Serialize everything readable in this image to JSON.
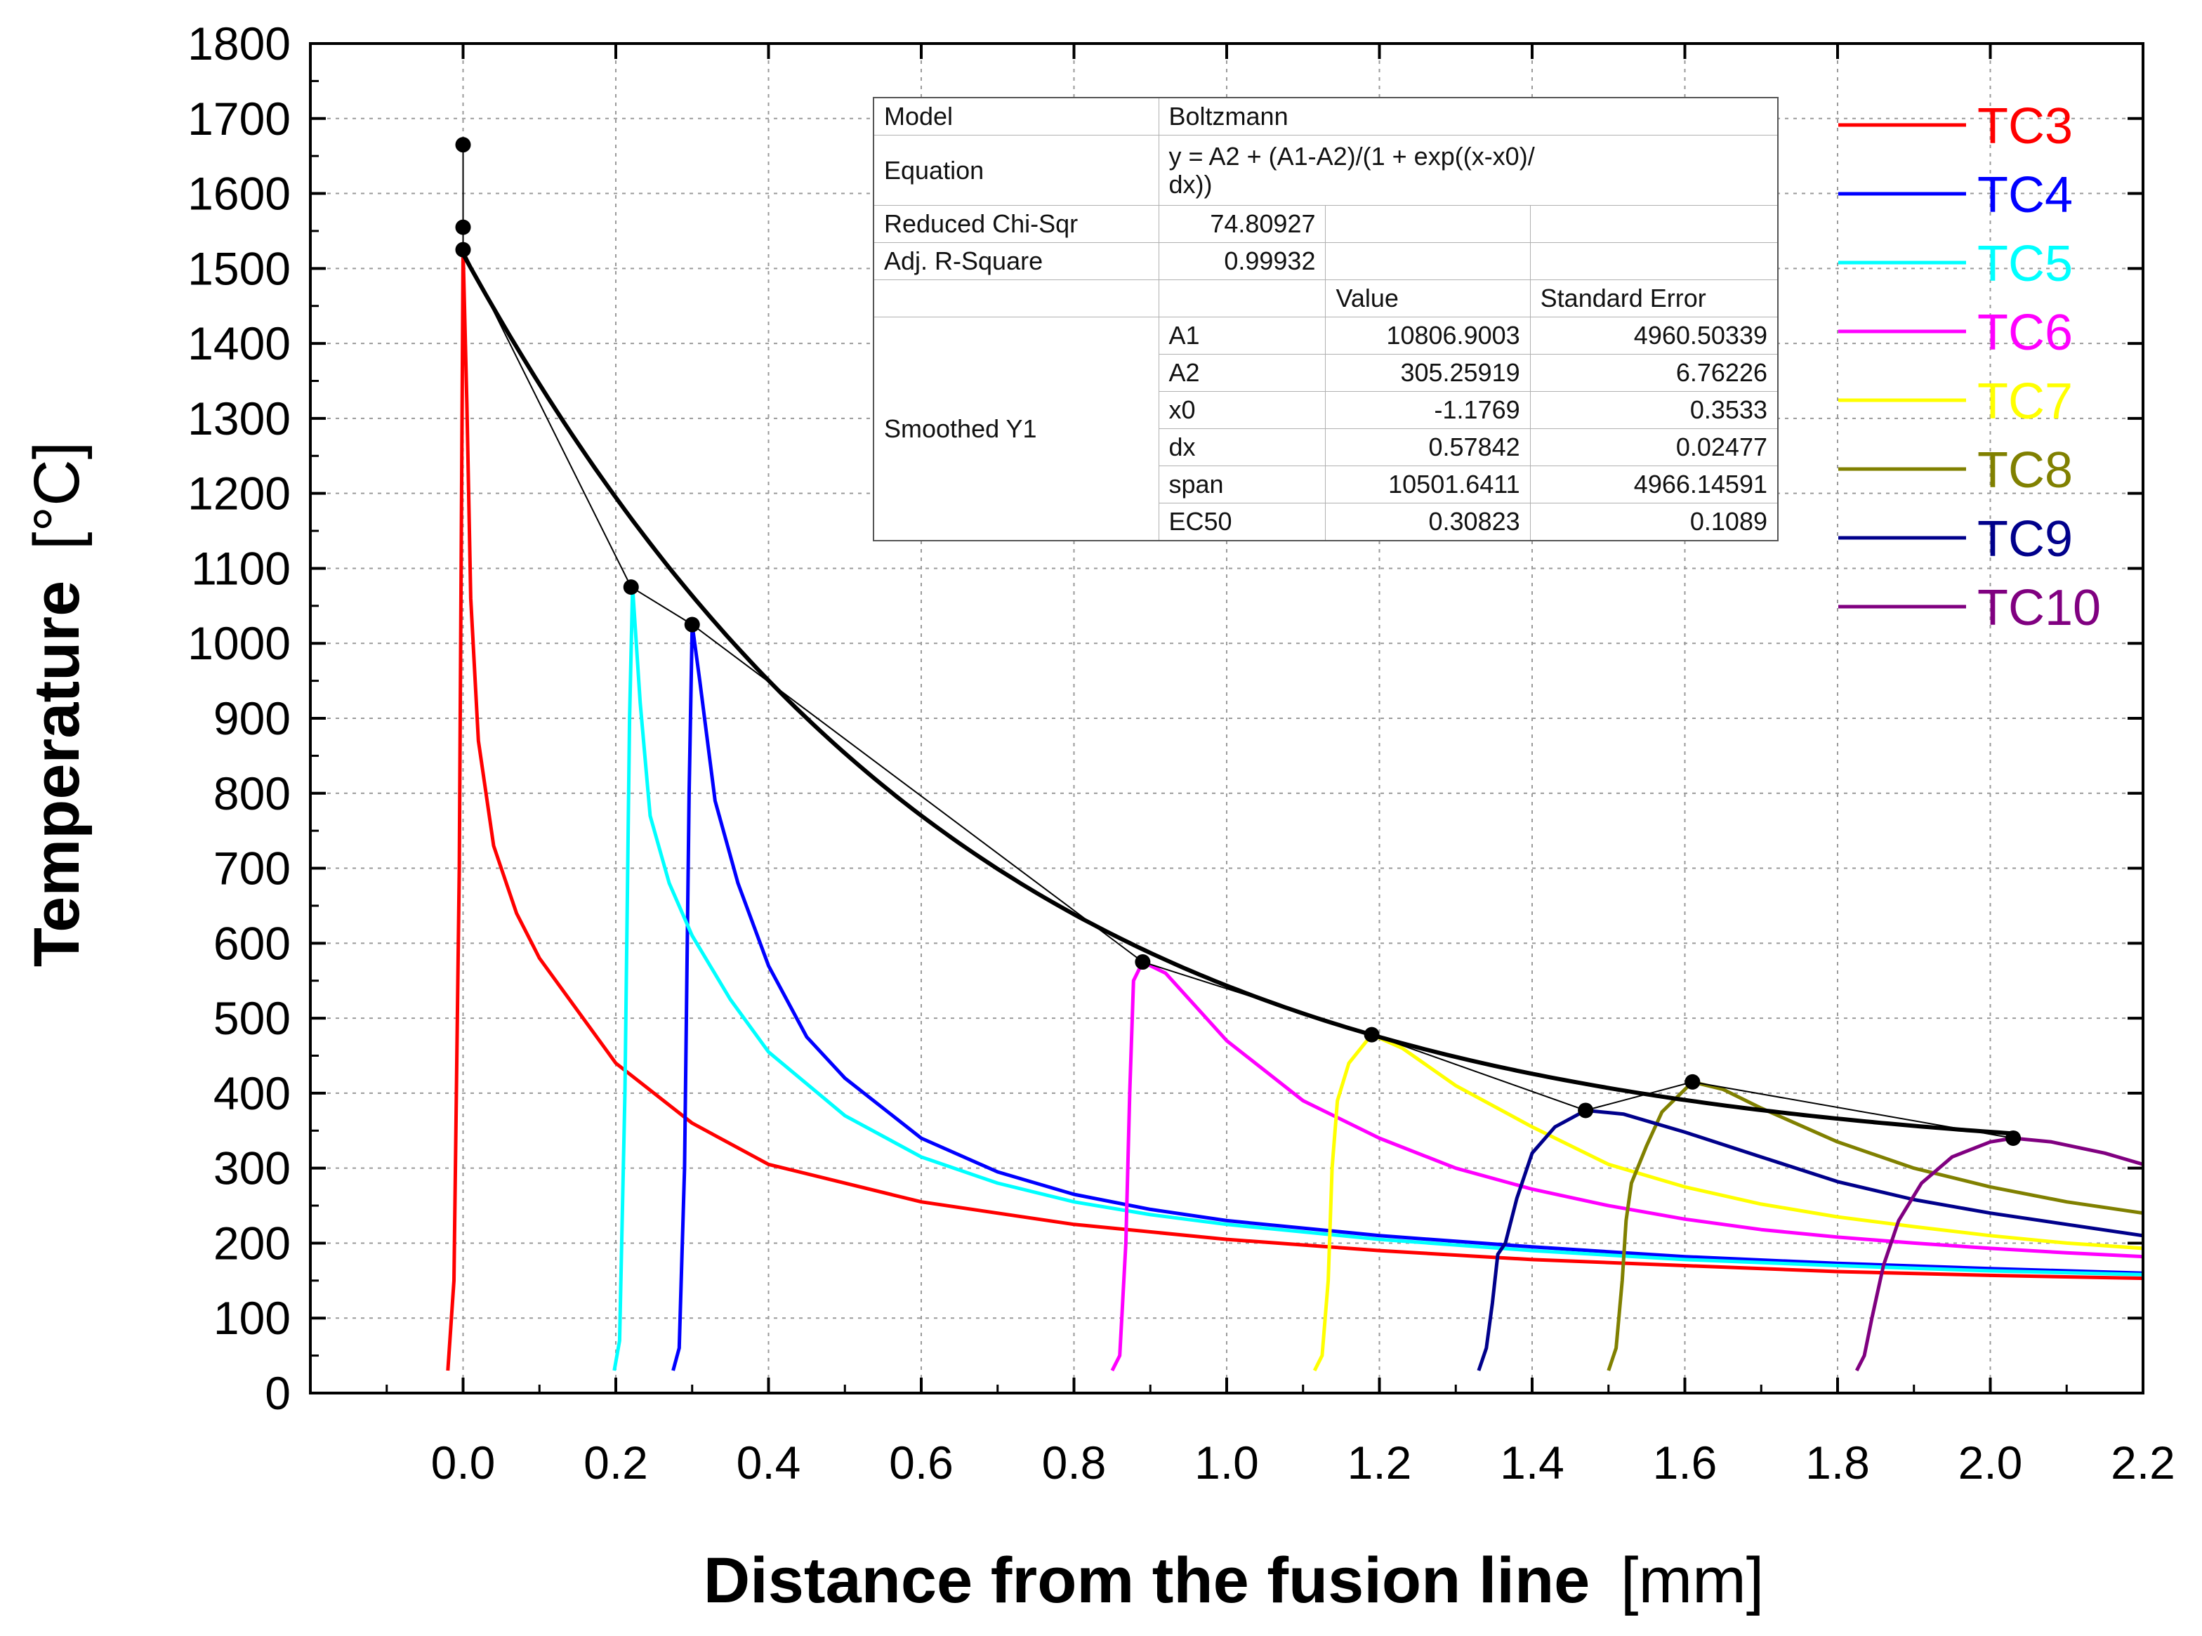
{
  "chart_data": {
    "type": "line",
    "xlabel": "Distance from the fusion line",
    "xlabel_unit": "[mm]",
    "ylabel": "Temperature",
    "ylabel_unit": "[°C]",
    "xlim": [
      -0.2,
      2.2
    ],
    "ylim": [
      0,
      1800
    ],
    "xticks": [
      0.0,
      0.2,
      0.4,
      0.6,
      0.8,
      1.0,
      1.2,
      1.4,
      1.6,
      1.8,
      2.0,
      2.2
    ],
    "xtick_labels": [
      "0.0",
      "0.2",
      "0.4",
      "0.6",
      "0.8",
      "1.0",
      "1.2",
      "1.4",
      "1.6",
      "1.8",
      "2.0",
      "2.2"
    ],
    "yticks": [
      0,
      100,
      200,
      300,
      400,
      500,
      600,
      700,
      800,
      900,
      1000,
      1100,
      1200,
      1300,
      1400,
      1500,
      1600,
      1700,
      1800
    ],
    "ytick_labels": [
      "0",
      "100",
      "200",
      "300",
      "400",
      "500",
      "600",
      "700",
      "800",
      "900",
      "1000",
      "1100",
      "1200",
      "1300",
      "1400",
      "1500",
      "1600",
      "1700",
      "1800"
    ],
    "grid": true,
    "legend_position": "right",
    "series": [
      {
        "name": "TC3",
        "color": "#ff0000",
        "x0": 0.0,
        "peak": 1525,
        "points": [
          [
            -0.02,
            30
          ],
          [
            -0.012,
            150
          ],
          [
            -0.005,
            700
          ],
          [
            0.0,
            1525
          ],
          [
            0.005,
            1320
          ],
          [
            0.01,
            1060
          ],
          [
            0.02,
            870
          ],
          [
            0.04,
            730
          ],
          [
            0.07,
            640
          ],
          [
            0.1,
            580
          ],
          [
            0.15,
            510
          ],
          [
            0.2,
            440
          ],
          [
            0.3,
            360
          ],
          [
            0.4,
            305
          ],
          [
            0.6,
            255
          ],
          [
            0.8,
            225
          ],
          [
            1.0,
            205
          ],
          [
            1.2,
            190
          ],
          [
            1.4,
            178
          ],
          [
            1.6,
            170
          ],
          [
            1.8,
            162
          ],
          [
            2.0,
            157
          ],
          [
            2.2,
            153
          ]
        ]
      },
      {
        "name": "TC4",
        "color": "#0000ff",
        "x0": 0.3,
        "peak": 1025,
        "points": [
          [
            0.275,
            30
          ],
          [
            0.283,
            60
          ],
          [
            0.29,
            300
          ],
          [
            0.296,
            800
          ],
          [
            0.3,
            1025
          ],
          [
            0.31,
            950
          ],
          [
            0.33,
            790
          ],
          [
            0.36,
            680
          ],
          [
            0.4,
            570
          ],
          [
            0.45,
            475
          ],
          [
            0.5,
            420
          ],
          [
            0.6,
            340
          ],
          [
            0.7,
            295
          ],
          [
            0.8,
            265
          ],
          [
            0.9,
            245
          ],
          [
            1.0,
            230
          ],
          [
            1.2,
            210
          ],
          [
            1.4,
            195
          ],
          [
            1.6,
            182
          ],
          [
            1.8,
            173
          ],
          [
            2.0,
            166
          ],
          [
            2.2,
            160
          ]
        ]
      },
      {
        "name": "TC5",
        "color": "#00ffff",
        "x0": 0.22,
        "peak": 1075,
        "points": [
          [
            0.198,
            30
          ],
          [
            0.205,
            70
          ],
          [
            0.212,
            400
          ],
          [
            0.218,
            900
          ],
          [
            0.222,
            1075
          ],
          [
            0.232,
            920
          ],
          [
            0.245,
            770
          ],
          [
            0.27,
            680
          ],
          [
            0.3,
            610
          ],
          [
            0.35,
            525
          ],
          [
            0.4,
            455
          ],
          [
            0.5,
            370
          ],
          [
            0.6,
            315
          ],
          [
            0.7,
            280
          ],
          [
            0.8,
            255
          ],
          [
            0.9,
            238
          ],
          [
            1.0,
            225
          ],
          [
            1.2,
            205
          ],
          [
            1.4,
            190
          ],
          [
            1.6,
            178
          ],
          [
            1.8,
            170
          ],
          [
            2.0,
            163
          ],
          [
            2.2,
            158
          ]
        ]
      },
      {
        "name": "TC6",
        "color": "#ff00ff",
        "x0": 0.89,
        "peak": 575,
        "points": [
          [
            0.85,
            30
          ],
          [
            0.86,
            50
          ],
          [
            0.868,
            200
          ],
          [
            0.873,
            400
          ],
          [
            0.878,
            550
          ],
          [
            0.89,
            575
          ],
          [
            0.92,
            560
          ],
          [
            1.0,
            470
          ],
          [
            1.1,
            390
          ],
          [
            1.2,
            340
          ],
          [
            1.3,
            300
          ],
          [
            1.4,
            272
          ],
          [
            1.5,
            250
          ],
          [
            1.6,
            232
          ],
          [
            1.7,
            218
          ],
          [
            1.8,
            208
          ],
          [
            1.9,
            200
          ],
          [
            2.0,
            193
          ],
          [
            2.1,
            187
          ],
          [
            2.2,
            182
          ]
        ]
      },
      {
        "name": "TC7",
        "color": "#ffff00",
        "x0": 1.19,
        "peak": 478,
        "points": [
          [
            1.115,
            30
          ],
          [
            1.125,
            50
          ],
          [
            1.133,
            150
          ],
          [
            1.138,
            300
          ],
          [
            1.145,
            390
          ],
          [
            1.16,
            440
          ],
          [
            1.19,
            478
          ],
          [
            1.23,
            460
          ],
          [
            1.3,
            410
          ],
          [
            1.4,
            355
          ],
          [
            1.5,
            305
          ],
          [
            1.6,
            275
          ],
          [
            1.7,
            252
          ],
          [
            1.8,
            235
          ],
          [
            1.9,
            222
          ],
          [
            2.0,
            210
          ],
          [
            2.1,
            200
          ],
          [
            2.2,
            193
          ]
        ]
      },
      {
        "name": "TC8",
        "color": "#808000",
        "x0": 1.61,
        "peak": 415,
        "points": [
          [
            1.5,
            30
          ],
          [
            1.51,
            60
          ],
          [
            1.518,
            150
          ],
          [
            1.523,
            230
          ],
          [
            1.53,
            280
          ],
          [
            1.55,
            330
          ],
          [
            1.57,
            375
          ],
          [
            1.61,
            415
          ],
          [
            1.65,
            405
          ],
          [
            1.7,
            380
          ],
          [
            1.8,
            335
          ],
          [
            1.9,
            300
          ],
          [
            2.0,
            275
          ],
          [
            2.1,
            255
          ],
          [
            2.2,
            240
          ]
        ]
      },
      {
        "name": "TC9",
        "color": "#00008b",
        "x0": 1.47,
        "peak": 377,
        "points": [
          [
            1.33,
            30
          ],
          [
            1.34,
            60
          ],
          [
            1.348,
            120
          ],
          [
            1.355,
            185
          ],
          [
            1.365,
            200
          ],
          [
            1.38,
            260
          ],
          [
            1.4,
            320
          ],
          [
            1.43,
            355
          ],
          [
            1.47,
            377
          ],
          [
            1.52,
            372
          ],
          [
            1.6,
            348
          ],
          [
            1.7,
            315
          ],
          [
            1.8,
            282
          ],
          [
            1.9,
            258
          ],
          [
            2.0,
            240
          ],
          [
            2.1,
            225
          ],
          [
            2.2,
            210
          ]
        ]
      },
      {
        "name": "TC10",
        "color": "#800080",
        "x0": 2.03,
        "peak": 340,
        "points": [
          [
            1.825,
            30
          ],
          [
            1.835,
            50
          ],
          [
            1.845,
            100
          ],
          [
            1.86,
            170
          ],
          [
            1.88,
            230
          ],
          [
            1.91,
            280
          ],
          [
            1.95,
            315
          ],
          [
            2.0,
            335
          ],
          [
            2.03,
            340
          ],
          [
            2.08,
            335
          ],
          [
            2.15,
            320
          ],
          [
            2.2,
            305
          ]
        ]
      }
    ],
    "peaks": {
      "name": "peak temperatures",
      "points": [
        [
          0.0,
          1525
        ],
        [
          0.22,
          1075
        ],
        [
          0.3,
          1025
        ],
        [
          0.89,
          575
        ],
        [
          1.19,
          478
        ],
        [
          1.47,
          377
        ],
        [
          1.61,
          415
        ],
        [
          2.03,
          340
        ]
      ],
      "extra_markers": [
        [
          0.0,
          1555
        ],
        [
          0.0,
          1665
        ]
      ]
    },
    "fit": {
      "name": "Boltzmann fit",
      "A1": 10806.9003,
      "A2": 305.25919,
      "x0": -1.1769,
      "dx": 0.57842,
      "x_range": [
        0.0,
        2.03
      ]
    }
  },
  "fit_table": {
    "model_label": "Model",
    "model_value": "Boltzmann",
    "equation_label": "Equation",
    "equation_value_line1": "y = A2 + (A1-A2)/(1 + exp((x-x0)/",
    "equation_value_line2": "dx))",
    "chisq_label": "Reduced Chi-Sqr",
    "chisq_value": "74.80927",
    "r2_label": "Adj. R-Square",
    "r2_value": "0.99932",
    "value_header": "Value",
    "error_header": "Standard Error",
    "group_label": "Smoothed Y1",
    "params": [
      {
        "name": "A1",
        "value": "10806.9003",
        "error": "4960.50339"
      },
      {
        "name": "A2",
        "value": "305.25919",
        "error": "6.76226"
      },
      {
        "name": "x0",
        "value": "-1.1769",
        "error": "0.3533"
      },
      {
        "name": "dx",
        "value": "0.57842",
        "error": "0.02477"
      },
      {
        "name": "span",
        "value": "10501.6411",
        "error": "4966.14591"
      },
      {
        "name": "EC50",
        "value": "0.30823",
        "error": "0.1089"
      }
    ]
  }
}
